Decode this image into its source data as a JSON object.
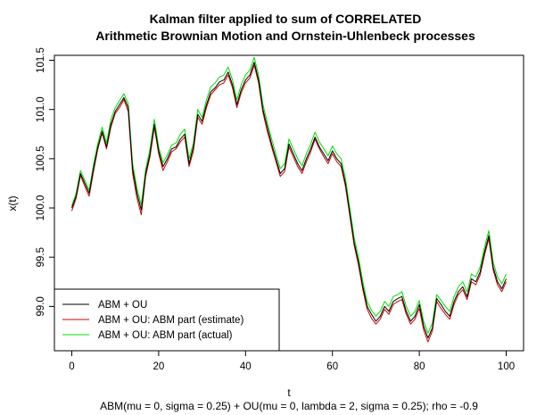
{
  "chart_data": {
    "type": "line",
    "title": [
      "Kalman filter applied to sum of CORRELATED",
      "Arithmetic Brownian Motion and Ornstein-Uhlenbeck processes"
    ],
    "subtitle": "ABM(mu = 0, sigma = 0.25) + OU(mu = 0, lambda = 2, sigma = 0.25); rho = -0.9",
    "xlabel": "t",
    "ylabel": "x(t)",
    "xlim": [
      -4,
      104
    ],
    "ylim": [
      98.55,
      101.55
    ],
    "xticks": [
      0,
      20,
      40,
      60,
      80,
      100
    ],
    "xtick_labels": [
      "0",
      "20",
      "40",
      "60",
      "80",
      "100"
    ],
    "yticks": [
      99.0,
      99.5,
      100.0,
      100.5,
      101.0,
      101.5
    ],
    "ytick_labels": [
      "99.0",
      "99.5",
      "100.0",
      "100.5",
      "101.0",
      "101.5"
    ],
    "grid": false,
    "legend": "bottom-left",
    "series": [
      {
        "name": "ABM + OU",
        "color": "#000000",
        "x": [
          0,
          1,
          2,
          3,
          4,
          5,
          6,
          7,
          8,
          9,
          10,
          11,
          12,
          13,
          14,
          15,
          16,
          17,
          18,
          19,
          20,
          21,
          22,
          23,
          24,
          25,
          26,
          27,
          28,
          29,
          30,
          31,
          32,
          33,
          34,
          35,
          36,
          37,
          38,
          39,
          40,
          41,
          42,
          43,
          44,
          45,
          46,
          47,
          48,
          49,
          50,
          51,
          52,
          53,
          54,
          55,
          56,
          57,
          58,
          59,
          60,
          61,
          62,
          63,
          64,
          65,
          66,
          67,
          68,
          69,
          70,
          71,
          72,
          73,
          74,
          75,
          76,
          77,
          78,
          79,
          80,
          81,
          82,
          83,
          84,
          85,
          86,
          87,
          88,
          89,
          90,
          91,
          92,
          93,
          94,
          95,
          96,
          97,
          98,
          99,
          100
        ],
        "y": [
          100.0,
          100.12,
          100.35,
          100.25,
          100.15,
          100.4,
          100.62,
          100.78,
          100.62,
          100.85,
          100.98,
          101.05,
          101.12,
          101.02,
          100.4,
          100.15,
          99.98,
          100.35,
          100.55,
          100.85,
          100.58,
          100.42,
          100.5,
          100.6,
          100.62,
          100.7,
          100.75,
          100.45,
          100.62,
          100.95,
          100.88,
          101.05,
          101.18,
          101.22,
          101.28,
          101.3,
          101.38,
          101.25,
          101.05,
          101.2,
          101.3,
          101.35,
          101.48,
          101.3,
          101.0,
          100.82,
          100.65,
          100.5,
          100.35,
          100.4,
          100.65,
          100.55,
          100.45,
          100.38,
          100.5,
          100.6,
          100.72,
          100.62,
          100.55,
          100.48,
          100.58,
          100.5,
          100.45,
          100.25,
          99.95,
          99.65,
          99.45,
          99.2,
          99.0,
          98.92,
          98.85,
          98.9,
          99.0,
          98.95,
          99.05,
          99.08,
          99.1,
          98.95,
          98.85,
          98.9,
          99.02,
          98.8,
          98.68,
          98.78,
          99.08,
          99.02,
          98.95,
          98.9,
          99.05,
          99.15,
          99.2,
          99.1,
          99.28,
          99.25,
          99.35,
          99.55,
          99.72,
          99.4,
          99.25,
          99.18,
          99.28
        ]
      },
      {
        "name": "ABM + OU: ABM part (estimate)",
        "color": "#cc0000",
        "x": [
          0,
          1,
          2,
          3,
          4,
          5,
          6,
          7,
          8,
          9,
          10,
          11,
          12,
          13,
          14,
          15,
          16,
          17,
          18,
          19,
          20,
          21,
          22,
          23,
          24,
          25,
          26,
          27,
          28,
          29,
          30,
          31,
          32,
          33,
          34,
          35,
          36,
          37,
          38,
          39,
          40,
          41,
          42,
          43,
          44,
          45,
          46,
          47,
          48,
          49,
          50,
          51,
          52,
          53,
          54,
          55,
          56,
          57,
          58,
          59,
          60,
          61,
          62,
          63,
          64,
          65,
          66,
          67,
          68,
          69,
          70,
          71,
          72,
          73,
          74,
          75,
          76,
          77,
          78,
          79,
          80,
          81,
          82,
          83,
          84,
          85,
          86,
          87,
          88,
          89,
          90,
          91,
          92,
          93,
          94,
          95,
          96,
          97,
          98,
          99,
          100
        ],
        "y": [
          99.97,
          100.1,
          100.33,
          100.22,
          100.12,
          100.37,
          100.6,
          100.76,
          100.6,
          100.82,
          100.96,
          101.02,
          101.1,
          100.98,
          100.35,
          100.1,
          99.93,
          100.32,
          100.52,
          100.82,
          100.55,
          100.38,
          100.47,
          100.57,
          100.6,
          100.67,
          100.72,
          100.42,
          100.58,
          100.92,
          100.85,
          101.02,
          101.15,
          101.2,
          101.25,
          101.27,
          101.35,
          101.22,
          101.02,
          101.17,
          101.27,
          101.32,
          101.45,
          101.27,
          100.97,
          100.78,
          100.62,
          100.47,
          100.32,
          100.37,
          100.62,
          100.52,
          100.42,
          100.35,
          100.47,
          100.57,
          100.7,
          100.6,
          100.52,
          100.45,
          100.55,
          100.47,
          100.42,
          100.22,
          99.92,
          99.62,
          99.42,
          99.17,
          98.97,
          98.88,
          98.82,
          98.87,
          98.97,
          98.92,
          99.02,
          99.05,
          99.07,
          98.92,
          98.82,
          98.87,
          98.98,
          98.76,
          98.64,
          98.75,
          99.05,
          98.98,
          98.92,
          98.87,
          99.02,
          99.12,
          99.17,
          99.07,
          99.25,
          99.22,
          99.32,
          99.52,
          99.69,
          99.37,
          99.22,
          99.15,
          99.25
        ]
      },
      {
        "name": "ABM + OU: ABM part (actual)",
        "color": "#00dd00",
        "x": [
          0,
          1,
          2,
          3,
          4,
          5,
          6,
          7,
          8,
          9,
          10,
          11,
          12,
          13,
          14,
          15,
          16,
          17,
          18,
          19,
          20,
          21,
          22,
          23,
          24,
          25,
          26,
          27,
          28,
          29,
          30,
          31,
          32,
          33,
          34,
          35,
          36,
          37,
          38,
          39,
          40,
          41,
          42,
          43,
          44,
          45,
          46,
          47,
          48,
          49,
          50,
          51,
          52,
          53,
          54,
          55,
          56,
          57,
          58,
          59,
          60,
          61,
          62,
          63,
          64,
          65,
          66,
          67,
          68,
          69,
          70,
          71,
          72,
          73,
          74,
          75,
          76,
          77,
          78,
          79,
          80,
          81,
          82,
          83,
          84,
          85,
          86,
          87,
          88,
          89,
          90,
          91,
          92,
          93,
          94,
          95,
          96,
          97,
          98,
          99,
          100
        ],
        "y": [
          100.02,
          100.15,
          100.38,
          100.28,
          100.18,
          100.44,
          100.66,
          100.82,
          100.66,
          100.9,
          101.02,
          101.09,
          101.16,
          101.06,
          100.45,
          100.2,
          100.03,
          100.39,
          100.6,
          100.9,
          100.62,
          100.46,
          100.54,
          100.64,
          100.66,
          100.75,
          100.8,
          100.5,
          100.66,
          101.0,
          100.92,
          101.1,
          101.23,
          101.27,
          101.33,
          101.35,
          101.43,
          101.3,
          101.1,
          101.25,
          101.35,
          101.4,
          101.53,
          101.35,
          101.05,
          100.87,
          100.7,
          100.55,
          100.4,
          100.45,
          100.7,
          100.6,
          100.5,
          100.43,
          100.55,
          100.65,
          100.77,
          100.67,
          100.6,
          100.53,
          100.63,
          100.55,
          100.5,
          100.3,
          100.0,
          99.7,
          99.5,
          99.25,
          99.05,
          98.96,
          98.9,
          98.95,
          99.05,
          99.0,
          99.1,
          99.12,
          99.15,
          99.0,
          98.9,
          98.95,
          99.06,
          98.85,
          98.73,
          98.83,
          99.12,
          99.06,
          99.0,
          98.95,
          99.1,
          99.2,
          99.25,
          99.15,
          99.33,
          99.3,
          99.4,
          99.6,
          99.77,
          99.45,
          99.3,
          99.23,
          99.33
        ]
      }
    ]
  }
}
